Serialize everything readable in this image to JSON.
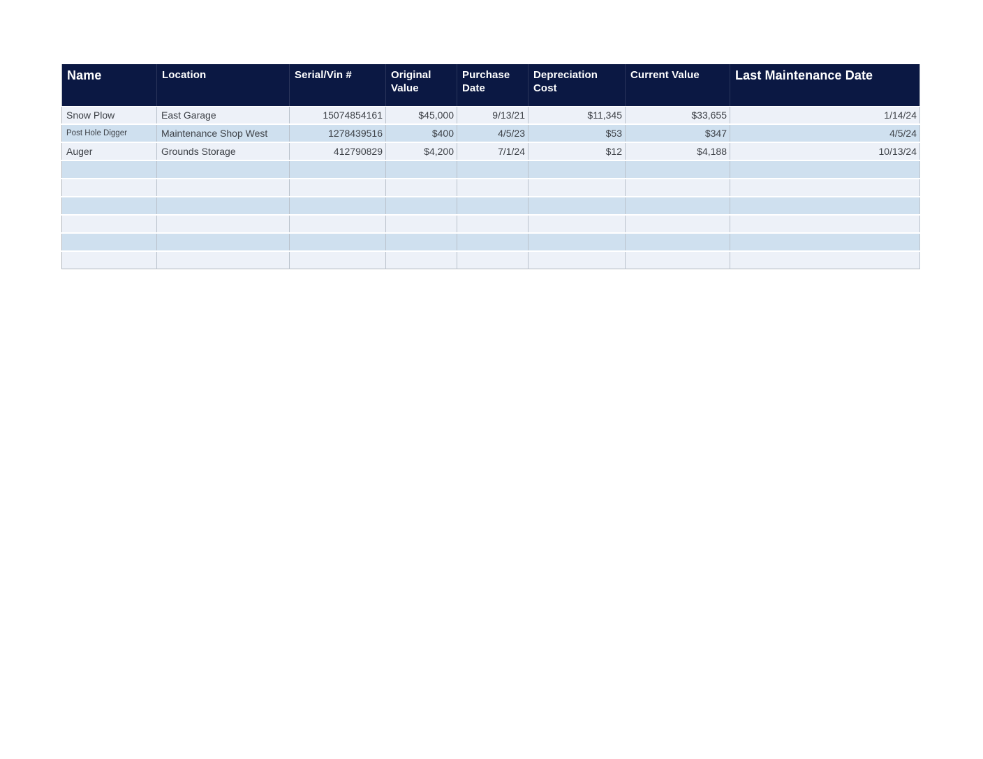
{
  "colors": {
    "header_bg": "#0b1843",
    "header_text": "#ffffff",
    "row_light": "#edf1f8",
    "row_blue": "#cfe0ef",
    "grid_line": "#bac2cc",
    "outer_border": "#b2b8bf",
    "cell_text": "#3d4147"
  },
  "table": {
    "columns": [
      {
        "id": "name",
        "label": "Name"
      },
      {
        "id": "location",
        "label": "Location"
      },
      {
        "id": "serial",
        "label": "Serial/Vin #"
      },
      {
        "id": "original_value",
        "label": "Original Value"
      },
      {
        "id": "purchase_date",
        "label": "Purchase Date"
      },
      {
        "id": "depreciation_cost",
        "label": "Depreciation Cost"
      },
      {
        "id": "current_value",
        "label": "Current Value"
      },
      {
        "id": "last_maintenance_date",
        "label": "Last Maintenance Date"
      }
    ],
    "rows": [
      {
        "name": "Snow Plow",
        "location": "East Garage",
        "serial": "15074854161",
        "original_value": "$45,000",
        "purchase_date": "9/13/21",
        "depreciation_cost": "$11,345",
        "current_value": "$33,655",
        "last_maintenance_date": "1/14/24"
      },
      {
        "name": "Post Hole Digger",
        "location": "Maintenance Shop West",
        "serial": "1278439516",
        "original_value": "$400",
        "purchase_date": "4/5/23",
        "depreciation_cost": "$53",
        "current_value": "$347",
        "last_maintenance_date": "4/5/24"
      },
      {
        "name": "Auger",
        "location": "Grounds Storage",
        "serial": "412790829",
        "original_value": "$4,200",
        "purchase_date": "7/1/24",
        "depreciation_cost": "$12",
        "current_value": "$4,188",
        "last_maintenance_date": "10/13/24"
      }
    ],
    "empty_row_count": 6
  }
}
